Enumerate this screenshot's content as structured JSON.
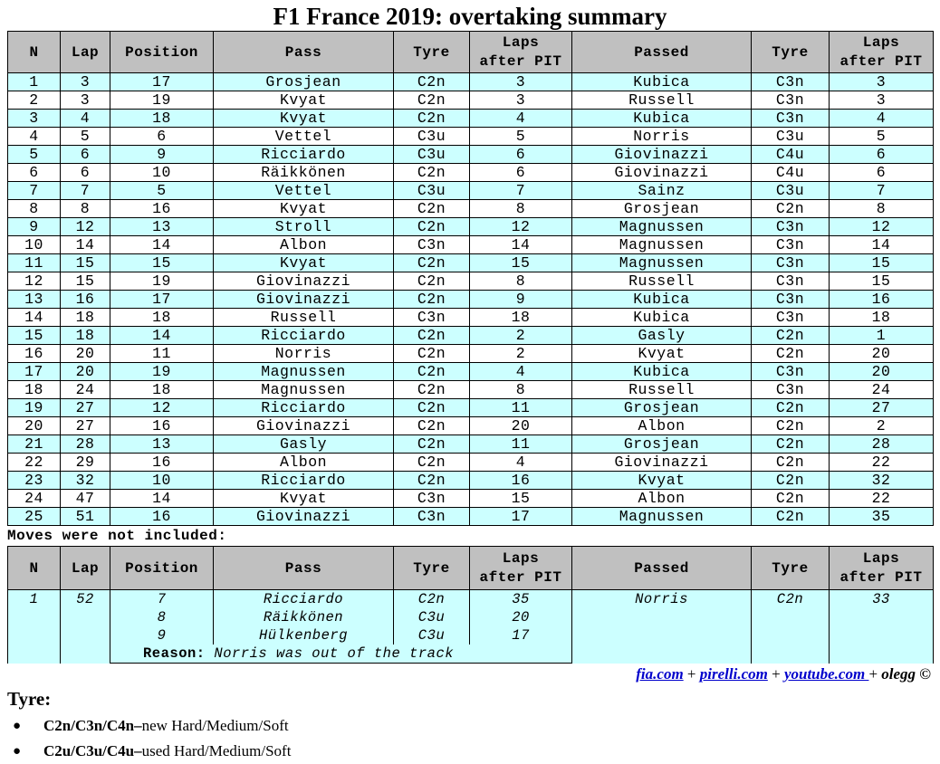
{
  "title": "F1 France 2019: overtaking summary",
  "headers": {
    "n": "N",
    "lap": "Lap",
    "position": "Position",
    "pass": "Pass",
    "tyre": "Tyre",
    "laps_after_pit_1": "Laps",
    "laps_after_pit_2": "after PIT",
    "passed": "Passed",
    "tyre2": "Tyre",
    "laps_after_pit2_1": "Laps",
    "laps_after_pit2_2": "after PIT"
  },
  "rows": [
    [
      "1",
      "3",
      "17",
      "Grosjean",
      "C2n",
      "3",
      "Kubica",
      "C3n",
      "3"
    ],
    [
      "2",
      "3",
      "19",
      "Kvyat",
      "C2n",
      "3",
      "Russell",
      "C3n",
      "3"
    ],
    [
      "3",
      "4",
      "18",
      "Kvyat",
      "C2n",
      "4",
      "Kubica",
      "C3n",
      "4"
    ],
    [
      "4",
      "5",
      "6",
      "Vettel",
      "C3u",
      "5",
      "Norris",
      "C3u",
      "5"
    ],
    [
      "5",
      "6",
      "9",
      "Ricciardo",
      "C3u",
      "6",
      "Giovinazzi",
      "C4u",
      "6"
    ],
    [
      "6",
      "6",
      "10",
      "Räikkönen",
      "C2n",
      "6",
      "Giovinazzi",
      "C4u",
      "6"
    ],
    [
      "7",
      "7",
      "5",
      "Vettel",
      "C3u",
      "7",
      "Sainz",
      "C3u",
      "7"
    ],
    [
      "8",
      "8",
      "16",
      "Kvyat",
      "C2n",
      "8",
      "Grosjean",
      "C2n",
      "8"
    ],
    [
      "9",
      "12",
      "13",
      "Stroll",
      "C2n",
      "12",
      "Magnussen",
      "C3n",
      "12"
    ],
    [
      "10",
      "14",
      "14",
      "Albon",
      "C3n",
      "14",
      "Magnussen",
      "C3n",
      "14"
    ],
    [
      "11",
      "15",
      "15",
      "Kvyat",
      "C2n",
      "15",
      "Magnussen",
      "C3n",
      "15"
    ],
    [
      "12",
      "15",
      "19",
      "Giovinazzi",
      "C2n",
      "8",
      "Russell",
      "C3n",
      "15"
    ],
    [
      "13",
      "16",
      "17",
      "Giovinazzi",
      "C2n",
      "9",
      "Kubica",
      "C3n",
      "16"
    ],
    [
      "14",
      "18",
      "18",
      "Russell",
      "C3n",
      "18",
      "Kubica",
      "C3n",
      "18"
    ],
    [
      "15",
      "18",
      "14",
      "Ricciardo",
      "C2n",
      "2",
      "Gasly",
      "C2n",
      "1"
    ],
    [
      "16",
      "20",
      "11",
      "Norris",
      "C2n",
      "2",
      "Kvyat",
      "C2n",
      "20"
    ],
    [
      "17",
      "20",
      "19",
      "Magnussen",
      "C2n",
      "4",
      "Kubica",
      "C3n",
      "20"
    ],
    [
      "18",
      "24",
      "18",
      "Magnussen",
      "C2n",
      "8",
      "Russell",
      "C3n",
      "24"
    ],
    [
      "19",
      "27",
      "12",
      "Ricciardo",
      "C2n",
      "11",
      "Grosjean",
      "C2n",
      "27"
    ],
    [
      "20",
      "27",
      "16",
      "Giovinazzi",
      "C2n",
      "20",
      "Albon",
      "C2n",
      "2"
    ],
    [
      "21",
      "28",
      "13",
      "Gasly",
      "C2n",
      "11",
      "Grosjean",
      "C2n",
      "28"
    ],
    [
      "22",
      "29",
      "16",
      "Albon",
      "C2n",
      "4",
      "Giovinazzi",
      "C2n",
      "22"
    ],
    [
      "23",
      "32",
      "10",
      "Ricciardo",
      "C2n",
      "16",
      "Kvyat",
      "C2n",
      "32"
    ],
    [
      "24",
      "47",
      "14",
      "Kvyat",
      "C3n",
      "15",
      "Albon",
      "C2n",
      "22"
    ],
    [
      "25",
      "51",
      "16",
      "Giovinazzi",
      "C3n",
      "17",
      "Magnussen",
      "C2n",
      "35"
    ]
  ],
  "excluded_caption": "Moves were not included:",
  "excluded": {
    "n": "1",
    "lap": "52",
    "entries": [
      {
        "position": "7",
        "pass": "Ricciardo",
        "tyre": "C2n",
        "laps": "35"
      },
      {
        "position": "8",
        "pass": "Räikkönen",
        "tyre": "C3u",
        "laps": "20"
      },
      {
        "position": "9",
        "pass": "Hülkenberg",
        "tyre": "C3u",
        "laps": "17"
      }
    ],
    "passed": "Norris",
    "passed_tyre": "C2n",
    "passed_laps": "33",
    "reason_label": "Reason:",
    "reason_text": " Norris was out of the track"
  },
  "credits": {
    "link1": "fia.com",
    "link2": "pirelli.com",
    "link3": "youtube.com ",
    "plus": "+",
    "author": "olegg ©"
  },
  "legend": {
    "title": "Tyre:",
    "items": [
      {
        "codes": "C2n/C3n/C4n",
        "dash": " – ",
        "text": "new Hard/Medium/Soft"
      },
      {
        "codes": "C2u/C3u/C4u",
        "dash": " – ",
        "text": "used Hard/Medium/Soft"
      }
    ]
  }
}
